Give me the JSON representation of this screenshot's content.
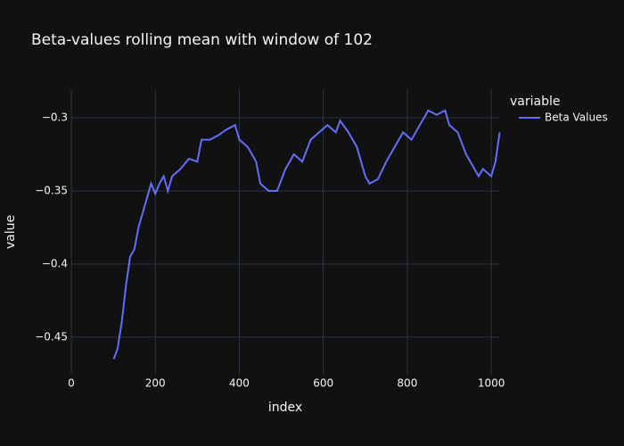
{
  "chart_data": {
    "type": "line",
    "title": "Beta-values rolling mean with window of 102",
    "x_label": "index",
    "y_label": "value",
    "legend_title": "variable",
    "x": [
      101,
      110,
      120,
      130,
      140,
      150,
      160,
      170,
      180,
      190,
      200,
      210,
      220,
      230,
      240,
      260,
      280,
      300,
      310,
      330,
      350,
      370,
      390,
      400,
      420,
      440,
      450,
      470,
      490,
      510,
      530,
      550,
      570,
      590,
      610,
      630,
      640,
      660,
      680,
      690,
      700,
      710,
      730,
      750,
      770,
      790,
      810,
      830,
      850,
      870,
      890,
      900,
      920,
      940,
      960,
      970,
      980,
      1000,
      1010,
      1020
    ],
    "series": [
      {
        "name": "Beta Values",
        "color": "#636efa",
        "values": [
          -0.465,
          -0.458,
          -0.44,
          -0.415,
          -0.395,
          -0.39,
          -0.375,
          -0.365,
          -0.355,
          -0.345,
          -0.352,
          -0.345,
          -0.34,
          -0.35,
          -0.34,
          -0.335,
          -0.328,
          -0.33,
          -0.315,
          -0.315,
          -0.312,
          -0.308,
          -0.305,
          -0.315,
          -0.32,
          -0.33,
          -0.345,
          -0.35,
          -0.35,
          -0.335,
          -0.325,
          -0.33,
          -0.315,
          -0.31,
          -0.305,
          -0.31,
          -0.302,
          -0.31,
          -0.32,
          -0.33,
          -0.34,
          -0.345,
          -0.342,
          -0.33,
          -0.32,
          -0.31,
          -0.315,
          -0.305,
          -0.295,
          -0.298,
          -0.295,
          -0.305,
          -0.31,
          -0.325,
          -0.335,
          -0.34,
          -0.335,
          -0.34,
          -0.33,
          -0.31
        ]
      }
    ],
    "xlim": [
      0,
      1021
    ],
    "xticks": [
      0,
      200,
      400,
      600,
      800,
      1000
    ],
    "ylim": [
      -0.4756,
      -0.2805
    ],
    "yticks": [
      {
        "value": -0.45,
        "label": "−0.45"
      },
      {
        "value": -0.4,
        "label": "−0.4"
      },
      {
        "value": -0.35,
        "label": "−0.35"
      },
      {
        "value": -0.3,
        "label": "−0.3"
      }
    ],
    "grid": true
  }
}
